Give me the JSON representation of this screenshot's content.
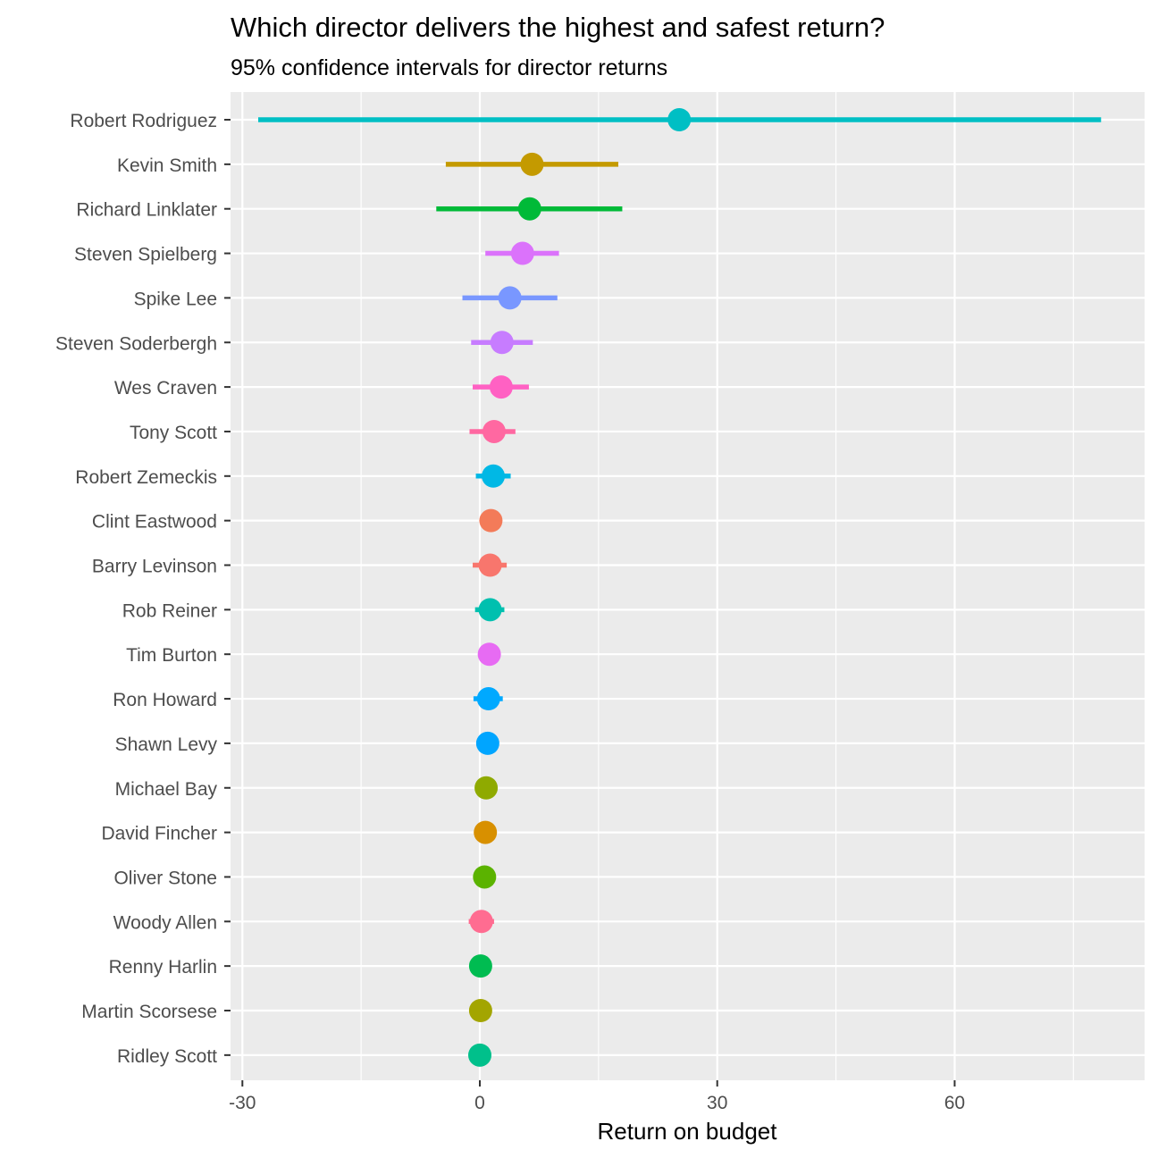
{
  "chart_data": {
    "type": "pointrange",
    "title": "Which director delivers the highest and safest return?",
    "subtitle": "95% confidence intervals for director returns",
    "xlabel": "Return on budget",
    "ylabel": "",
    "xlim": [
      -31.5,
      84
    ],
    "xticks": [
      -30,
      0,
      30,
      60
    ],
    "grid": true,
    "legend": "none",
    "panel_color": "#ebebeb",
    "categories": [
      "Robert Rodriguez",
      "Kevin Smith",
      "Richard Linklater",
      "Steven Spielberg",
      "Spike Lee",
      "Steven Soderbergh",
      "Wes Craven",
      "Tony Scott",
      "Robert Zemeckis",
      "Clint Eastwood",
      "Barry Levinson",
      "Rob Reiner",
      "Tim Burton",
      "Ron Howard",
      "Shawn Levy",
      "Michael Bay",
      "David Fincher",
      "Oliver Stone",
      "Woody Allen",
      "Renny Harlin",
      "Martin Scorsese",
      "Ridley Scott"
    ],
    "estimate": [
      25.2,
      6.6,
      6.3,
      5.4,
      3.8,
      2.8,
      2.7,
      1.8,
      1.7,
      1.4,
      1.3,
      1.3,
      1.2,
      1.1,
      1.0,
      0.8,
      0.7,
      0.6,
      0.2,
      0.1,
      0.1,
      0.0
    ],
    "lower": [
      -28.0,
      -4.3,
      -5.5,
      0.7,
      -2.2,
      -1.1,
      -0.9,
      -1.3,
      -0.5,
      1.0,
      -0.9,
      -0.6,
      1.1,
      -0.8,
      0.9,
      0.7,
      0.6,
      0.5,
      -1.4,
      0.0,
      0.0,
      -0.1
    ],
    "upper": [
      78.5,
      17.5,
      18.0,
      10.0,
      9.8,
      6.7,
      6.2,
      4.5,
      3.9,
      1.7,
      3.4,
      3.1,
      1.4,
      2.9,
      1.2,
      0.9,
      0.8,
      0.7,
      1.8,
      0.2,
      0.2,
      0.1
    ],
    "colors": [
      "#00BFC4",
      "#C49A00",
      "#00BA38",
      "#DB72FB",
      "#7997FF",
      "#C77CFF",
      "#FF61C3",
      "#FF68A1",
      "#00B8E5",
      "#F37B59",
      "#F8766D",
      "#00C0AF",
      "#E76BF3",
      "#00A9FF",
      "#00A5FF",
      "#8FAA00",
      "#D89000",
      "#5BB300",
      "#FF6C91",
      "#00BC51",
      "#A3A500",
      "#00C08B"
    ]
  }
}
